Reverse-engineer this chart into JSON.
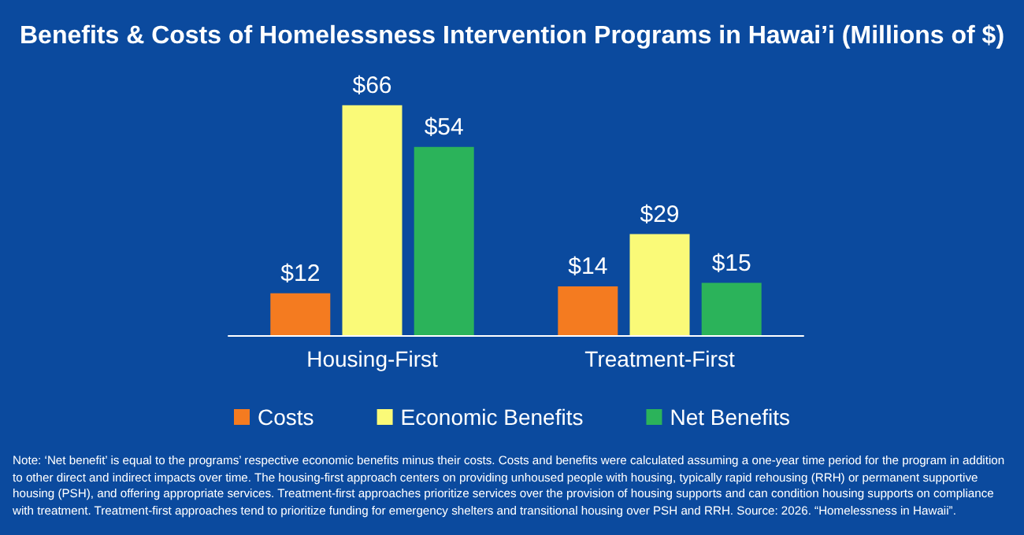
{
  "chart_data": {
    "type": "bar",
    "title": "Benefits & Costs of Homelessness Intervention Programs in Hawai’i (Millions of $)",
    "categories": [
      "Housing-First",
      "Treatment-First"
    ],
    "series": [
      {
        "name": "Costs",
        "color": "#f47b20",
        "values": [
          12,
          14
        ],
        "value_labels": [
          "$12",
          "$14"
        ]
      },
      {
        "name": "Economic Benefits",
        "color": "#fafa78",
        "values": [
          66,
          29
        ],
        "value_labels": [
          "$66",
          "$29"
        ]
      },
      {
        "name": "Net Benefits",
        "color": "#2bb35a",
        "values": [
          54,
          15
        ],
        "value_labels": [
          "$54",
          "$15"
        ]
      }
    ],
    "legend": "bottom",
    "grid": false,
    "annotations": [
      "Note: ‘Net benefit’ is equal to the programs’ respective economic benefits minus their costs. Costs and benefits were calculated assuming a one-year time period for the program in addition to other direct and indirect impacts over time. The housing-first approach centers on providing unhoused people with housing, typically rapid rehousing (RRH) or permanent supportive housing (PSH), and offering appropriate services. Treatment-first approaches prioritize services over the provision of housing supports and can condition housing supports on compliance with treatment. Treatment-first approaches tend to prioritize funding for emergency shelters and transitional housing over PSH and RRH.",
      "Source: 2026. “Homelessness in Hawaii”."
    ]
  }
}
